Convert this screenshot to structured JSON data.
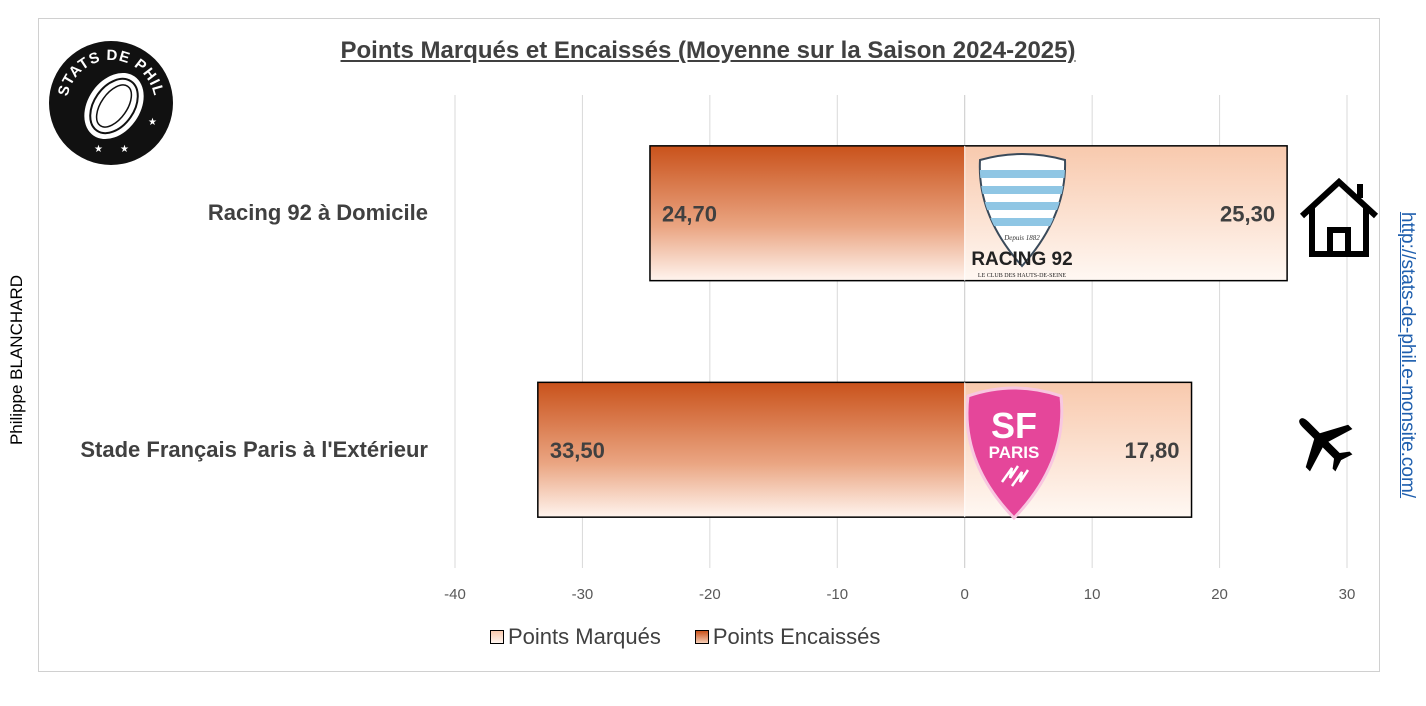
{
  "chart_data": {
    "type": "bar",
    "orientation": "horizontal",
    "stacked": true,
    "title": "Points Marqués et Encaissés (Moyenne sur la Saison 2024-2025)",
    "categories": [
      "Racing 92 à Domicile",
      "Stade Français Paris à l'Extérieur"
    ],
    "series": [
      {
        "name": "Points Marqués",
        "values": [
          25.3,
          17.8
        ],
        "labels": [
          "25,30",
          "17,80"
        ],
        "color": "#f8c9ad"
      },
      {
        "name": "Points Encaissés",
        "values": [
          -24.7,
          -33.5
        ],
        "labels": [
          "24,70",
          "33,50"
        ],
        "color": "#c9521b"
      }
    ],
    "xlim": [
      -40,
      30
    ],
    "xticks": [
      -40,
      -30,
      -20,
      -10,
      0,
      10,
      20,
      30
    ],
    "grid": true,
    "legend_position": "bottom"
  },
  "author": "Philippe BLANCHARD",
  "site_link": "http://stats-de-phil.e-monsite.com/",
  "logos": {
    "stats": {
      "text_top": "STATS DE PHIL"
    },
    "racing": {
      "depuis": "Depuis 1882",
      "name": "RACING 92",
      "tagline": "LE CLUB DES HAUTS-DE-SEINE"
    },
    "sf": {
      "line1": "SF",
      "line2": "PARIS"
    }
  },
  "icons": {
    "home": "house-icon",
    "away": "plane-icon"
  },
  "colors": {
    "scored_top": "#f8c9ad",
    "conceded_top": "#c9521b",
    "text": "#404040",
    "link": "#1f5fae"
  }
}
